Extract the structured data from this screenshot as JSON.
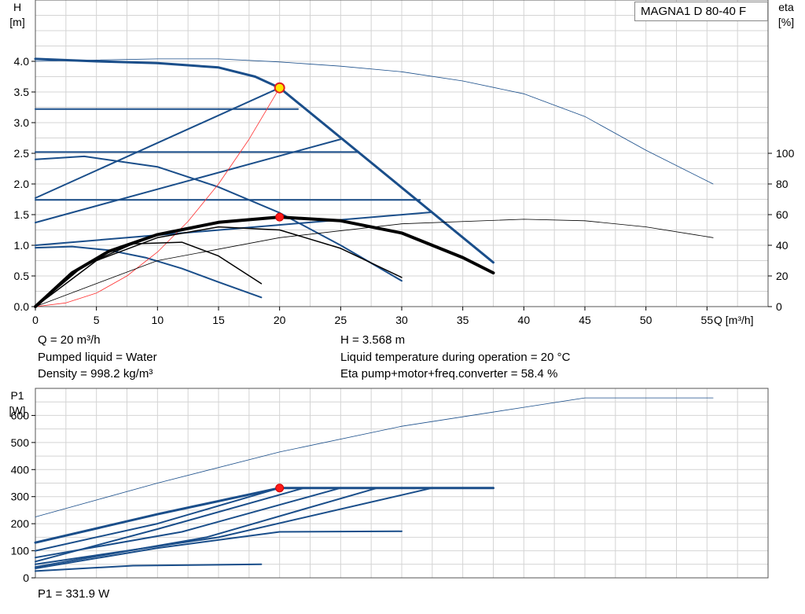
{
  "model_label": "MAGNA1 D 80-40 F",
  "info": {
    "q": "Q = 20 m³/h",
    "liquid": "Pumped liquid = Water",
    "density": "Density = 998.2 kg/m³",
    "h": "H = 3.568 m",
    "temp": "Liquid temperature during operation = 20 °C",
    "eta": "Eta pump+motor+freq.converter = 58.4 %",
    "p1": "P1 = 331.9 W"
  },
  "chart_data": [
    {
      "type": "line",
      "xlabel": "Q [m³/h]",
      "ylabel": "H\n[m]",
      "y2label": "eta\n[%]",
      "xlim": [
        0,
        60
      ],
      "ylim": [
        0,
        5.0
      ],
      "y2lim": [
        0,
        200
      ],
      "x_ticks": [
        0,
        5,
        10,
        15,
        20,
        25,
        30,
        35,
        40,
        45,
        50,
        55
      ],
      "y_ticks": [
        "0.0",
        "0.5",
        "1.0",
        "1.5",
        "2.0",
        "2.5",
        "3.0",
        "3.5",
        "4.0"
      ],
      "y2_ticks": [
        0,
        20,
        40,
        60,
        80,
        100
      ],
      "grid": true,
      "head_series": [
        {
          "id": "max-curve",
          "color": "#1a4e8a",
          "x": [
            0,
            5,
            10,
            15,
            20,
            25,
            30,
            35,
            40,
            45,
            50,
            55.5
          ],
          "y": [
            4.0,
            4.02,
            4.04,
            4.04,
            3.99,
            3.92,
            3.83,
            3.68,
            3.47,
            3.1,
            2.55,
            2.0
          ]
        },
        {
          "id": "auto-operating",
          "color": "#1a4e8a",
          "x": [
            0,
            5,
            10,
            15,
            18,
            20
          ],
          "y": [
            4.04,
            4.0,
            3.97,
            3.9,
            3.75,
            3.568
          ]
        },
        {
          "id": "auto-limit",
          "color": "#1a4e8a",
          "x": [
            20,
            37.5
          ],
          "y": [
            3.568,
            0.72
          ]
        },
        {
          "id": "const-pressure-1",
          "color": "#1a4e8a",
          "x": [
            0,
            21.5
          ],
          "y": [
            3.22,
            3.22
          ]
        },
        {
          "id": "const-pressure-2",
          "color": "#1a4e8a",
          "x": [
            0,
            26.5
          ],
          "y": [
            2.52,
            2.52
          ]
        },
        {
          "id": "const-pressure-3",
          "color": "#1a4e8a",
          "x": [
            0,
            31.5
          ],
          "y": [
            1.74,
            1.74
          ]
        },
        {
          "id": "prop-pressure-1",
          "color": "#1a4e8a",
          "x": [
            0,
            20
          ],
          "y": [
            1.77,
            3.568
          ]
        },
        {
          "id": "prop-pressure-2",
          "color": "#1a4e8a",
          "x": [
            0,
            25
          ],
          "y": [
            1.37,
            2.73
          ]
        },
        {
          "id": "prop-pressure-3",
          "color": "#1a4e8a",
          "x": [
            0,
            32.5
          ],
          "y": [
            1.0,
            1.54
          ]
        },
        {
          "id": "const-curve-1",
          "color": "#1a4e8a",
          "x": [
            0,
            4,
            10,
            15,
            20,
            25,
            30
          ],
          "y": [
            2.4,
            2.45,
            2.28,
            1.95,
            1.53,
            1.0,
            0.42
          ]
        },
        {
          "id": "const-curve-2",
          "color": "#1a4e8a",
          "x": [
            0,
            3,
            6,
            9,
            12,
            15,
            18.5
          ],
          "y": [
            0.96,
            0.98,
            0.92,
            0.8,
            0.62,
            0.4,
            0.15
          ]
        },
        {
          "id": "system-curve",
          "color": "#ff3030",
          "x": [
            0,
            2.5,
            5,
            7.5,
            10,
            12.5,
            15,
            17.5,
            20
          ],
          "y": [
            0,
            0.06,
            0.22,
            0.5,
            0.89,
            1.39,
            2.0,
            2.73,
            3.568
          ]
        }
      ],
      "eta_series": [
        {
          "id": "eta-max",
          "color": "#000000",
          "x": [
            0,
            10,
            20,
            30,
            40,
            45,
            50,
            55.5
          ],
          "y": [
            0,
            30,
            45,
            54,
            57,
            56,
            52,
            45
          ]
        },
        {
          "id": "eta-auto",
          "color": "#000000",
          "x": [
            0,
            3,
            6,
            10,
            15,
            20,
            25,
            30,
            35,
            37.5
          ],
          "y": [
            0,
            22,
            36,
            47,
            55,
            58.4,
            56,
            48,
            32,
            22
          ]
        },
        {
          "id": "eta-cc1",
          "color": "#000000",
          "x": [
            0,
            5,
            10,
            15,
            20,
            25,
            30
          ],
          "y": [
            0,
            30,
            45,
            52,
            50,
            38,
            19
          ]
        },
        {
          "id": "eta-cc2",
          "color": "#000000",
          "x": [
            0,
            4,
            8,
            12,
            15,
            18.5
          ],
          "y": [
            0,
            27,
            41,
            42,
            33,
            15
          ]
        }
      ],
      "duty_point": {
        "x": 20,
        "h": 3.568,
        "eta": 58.4
      }
    },
    {
      "type": "line",
      "xlabel": "",
      "ylabel": "P1\n[W]",
      "xlim": [
        0,
        60
      ],
      "ylim": [
        0,
        700
      ],
      "y_ticks": [
        0,
        100,
        200,
        300,
        400,
        500,
        600
      ],
      "grid": true,
      "series": [
        {
          "id": "p1-max",
          "color": "#1a4e8a",
          "x": [
            0,
            10,
            20,
            30,
            40,
            45,
            55.5
          ],
          "y": [
            225,
            350,
            465,
            560,
            630,
            665,
            665
          ]
        },
        {
          "id": "p1-auto",
          "color": "#1a4e8a",
          "x": [
            0,
            10,
            20,
            37.5
          ],
          "y": [
            130,
            235,
            331.9,
            331.9
          ]
        },
        {
          "id": "p1-prop-1",
          "color": "#1a4e8a",
          "x": [
            0,
            10,
            20,
            37.5
          ],
          "y": [
            100,
            200,
            331.9,
            331.9
          ]
        },
        {
          "id": "p1-prop-2",
          "color": "#1a4e8a",
          "x": [
            0,
            12,
            25,
            37.5
          ],
          "y": [
            75,
            170,
            331.9,
            331.9
          ]
        },
        {
          "id": "p1-prop-3",
          "color": "#1a4e8a",
          "x": [
            0,
            15,
            32.5,
            37.5
          ],
          "y": [
            50,
            150,
            331.9,
            331.9
          ]
        },
        {
          "id": "p1-cp-1",
          "color": "#1a4e8a",
          "x": [
            0,
            10,
            22,
            37.5
          ],
          "y": [
            60,
            180,
            331.9,
            331.9
          ]
        },
        {
          "id": "p1-cp-2",
          "color": "#1a4e8a",
          "x": [
            0,
            14,
            28,
            37.5
          ],
          "y": [
            40,
            150,
            331.9,
            331.9
          ]
        },
        {
          "id": "p1-cc1",
          "color": "#1a4e8a",
          "x": [
            0,
            10,
            20,
            30
          ],
          "y": [
            35,
            110,
            170,
            172
          ]
        },
        {
          "id": "p1-cc2",
          "color": "#1a4e8a",
          "x": [
            0,
            8,
            18.5
          ],
          "y": [
            25,
            45,
            50
          ]
        }
      ],
      "duty_point": {
        "x": 20,
        "y": 331.9
      }
    }
  ]
}
